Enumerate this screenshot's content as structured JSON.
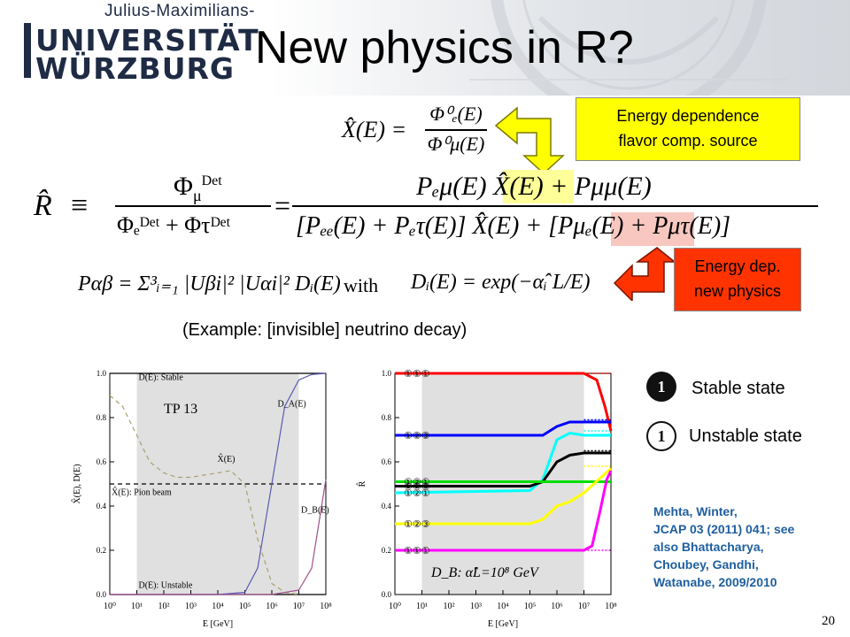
{
  "header": {
    "logo_line1": "Julius-Maximilians-",
    "logo_line2": "UNIVERSITÄT",
    "logo_line3": "WÜRZBURG",
    "title": "New physics in R?"
  },
  "callouts": {
    "energy_dependence": [
      "Energy dependence",
      "flavor comp. source"
    ],
    "energy_dep_new_physics": [
      "Energy dep.",
      "new physics"
    ]
  },
  "equations": {
    "x_hat_lhs": "X̂(E) =",
    "x_num": "Φ⁰ₑ(E)",
    "x_den": "Φ⁰μ(E)",
    "r_lhs": "R̂",
    "equiv": "≡",
    "r_num1": "Φ",
    "r_num1_sup": "Det",
    "r_num1_sub": "μ",
    "r_den1": "Φₑᴰᵉᵗ + Φτᴰᵉᵗ",
    "eq": "=",
    "r_num2": "Pₑμ(E) X̂(E) + Pμμ(E)",
    "r_den2_a": "[Pₑₑ(E) + Pₑτ(E)] X̂(E) + [",
    "r_den2_b": "Pμₑ(E)",
    "r_den2_c": " + Pμτ(E)]",
    "p_formula": "Pαβ = Σ³ᵢ₌₁ |Uβi|² |Uαi|² Dᵢ(E)",
    "with": "with",
    "d_formula": "Dᵢ(E) = exp(−α̂ᵢ L/E)"
  },
  "example_text": "(Example: [invisible] neutrino decay)",
  "legend": {
    "stable_num": "1",
    "stable_label": "Stable state",
    "unstable_num": "1",
    "unstable_label": "Unstable state"
  },
  "citation": [
    "Mehta, Winter,",
    "JCAP 03 (2011) 041; see",
    "also Bhattacharya,",
    "Choubey, Gandhi,",
    "Watanabe, 2009/2010"
  ],
  "page_number": "20",
  "chart_data": [
    {
      "type": "line",
      "xlabel": "E [GeV]",
      "ylabel": "X̂(E), D(E)",
      "x_scale": "log",
      "xlim": [
        1,
        100000000
      ],
      "ylim": [
        0.0,
        1.0
      ],
      "x_ticks": [
        "10⁰",
        "10¹",
        "10²",
        "10³",
        "10⁴",
        "10⁵",
        "10⁶",
        "10⁷",
        "10⁸"
      ],
      "y_ticks": [
        "0.0",
        "0.2",
        "0.4",
        "0.6",
        "0.8",
        "1.0"
      ],
      "shaded_band": [
        10,
        10000000
      ],
      "annotations": [
        "D(E): Stable",
        "TP 13",
        "D_A(E)",
        "X̂(E)",
        "X̂(E): Pion beam",
        "D_B(E)",
        "D(E): Unstable"
      ],
      "series": [
        {
          "name": "D(E): Stable",
          "color": "#000000",
          "x": [
            1,
            100000000
          ],
          "y": [
            1.0,
            1.0
          ]
        },
        {
          "name": "X̂(E): Pion beam",
          "color": "#000000",
          "dashed": true,
          "x": [
            1,
            100000000
          ],
          "y": [
            0.5,
            0.5
          ]
        },
        {
          "name": "D(E): Unstable",
          "color": "#000000",
          "x": [
            1,
            100000000
          ],
          "y": [
            0.0,
            0.0
          ]
        },
        {
          "name": "X̂(E)",
          "color": "#a8a070",
          "dashed": true,
          "x": [
            1,
            3,
            10,
            30,
            100,
            300,
            1000,
            3000,
            10000,
            30000,
            100000,
            300000,
            1000000,
            3000000,
            10000000
          ],
          "y": [
            0.9,
            0.85,
            0.72,
            0.6,
            0.55,
            0.53,
            0.53,
            0.54,
            0.55,
            0.56,
            0.5,
            0.25,
            0.05,
            0.01,
            0.0
          ]
        },
        {
          "name": "D_A(E)",
          "color": "#5a5ab4",
          "x": [
            1,
            10000,
            100000,
            300000,
            1000000,
            3000000,
            10000000,
            30000000,
            100000000
          ],
          "y": [
            0.0,
            0.0,
            0.01,
            0.12,
            0.5,
            0.85,
            0.97,
            0.995,
            1.0
          ]
        },
        {
          "name": "D_B(E)",
          "color": "#a0508c",
          "x": [
            1,
            1000000,
            10000000,
            30000000,
            60000000,
            100000000
          ],
          "y": [
            0.0,
            0.0,
            0.02,
            0.12,
            0.35,
            0.52
          ]
        }
      ]
    },
    {
      "type": "line",
      "xlabel": "E [GeV]",
      "ylabel": "R̂",
      "x_scale": "log",
      "xlim": [
        1,
        100000000
      ],
      "ylim": [
        0.0,
        1.0
      ],
      "x_ticks": [
        "10⁰",
        "10¹",
        "10²",
        "10³",
        "10⁴",
        "10⁵",
        "10⁶",
        "10⁷",
        "10⁸"
      ],
      "y_ticks": [
        "0.0",
        "0.2",
        "0.4",
        "0.6",
        "0.8",
        "1.0"
      ],
      "shaded_band": [
        10,
        10000000
      ],
      "annotation": "D_B: α̂L=10⁸ GeV",
      "series": [
        {
          "color": "#ff0000",
          "x": [
            1,
            10000000,
            30000000,
            60000000,
            100000000
          ],
          "y": [
            1.0,
            1.0,
            0.97,
            0.85,
            0.74
          ]
        },
        {
          "color": "#0000ff",
          "x": [
            1,
            100000,
            300000,
            1000000,
            3000000,
            10000000,
            100000000
          ],
          "y": [
            0.72,
            0.72,
            0.72,
            0.76,
            0.78,
            0.78,
            0.78
          ]
        },
        {
          "color": "#00ffff",
          "x": [
            1,
            100000,
            300000,
            1000000,
            3000000,
            10000000,
            100000000
          ],
          "y": [
            0.46,
            0.47,
            0.52,
            0.7,
            0.73,
            0.72,
            0.72
          ]
        },
        {
          "color": "#000000",
          "x": [
            1,
            100000,
            300000,
            1000000,
            3000000,
            10000000,
            100000000
          ],
          "y": [
            0.49,
            0.49,
            0.51,
            0.6,
            0.63,
            0.64,
            0.64
          ]
        },
        {
          "color": "#00e000",
          "x": [
            1,
            100000000
          ],
          "y": [
            0.51,
            0.51
          ]
        },
        {
          "color": "#ffff00",
          "x": [
            1,
            100000,
            300000,
            1000000,
            3000000,
            10000000,
            100000000
          ],
          "y": [
            0.32,
            0.32,
            0.34,
            0.4,
            0.42,
            0.46,
            0.57
          ]
        },
        {
          "color": "#ff00ff",
          "x": [
            1,
            10000000,
            20000000,
            40000000,
            70000000,
            100000000
          ],
          "y": [
            0.2,
            0.2,
            0.22,
            0.38,
            0.52,
            0.56
          ]
        }
      ],
      "dotted_series": [
        {
          "color": "#ff0000",
          "y": 1.0
        },
        {
          "color": "#0000ff",
          "y": 0.79
        },
        {
          "color": "#00ffff",
          "y": 0.74
        },
        {
          "color": "#000000",
          "y": 0.65
        },
        {
          "color": "#00e000",
          "y": 0.51
        },
        {
          "color": "#ffff00",
          "y": 0.58
        },
        {
          "color": "#ff00ff",
          "y": 0.2
        }
      ],
      "marker_labels": [
        "①①①",
        "①②③",
        "①②①",
        "①②③",
        "①②①",
        "①②③",
        "①①①"
      ]
    }
  ]
}
